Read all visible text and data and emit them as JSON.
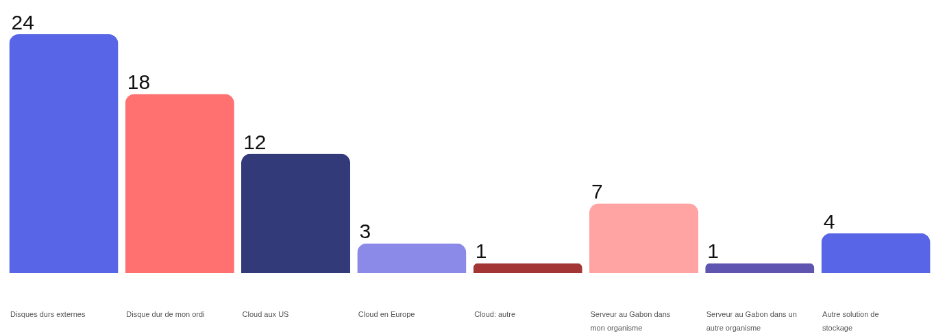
{
  "chart_data": {
    "type": "bar",
    "categories": [
      "Disques durs externes",
      "Disque dur de mon ordi",
      "Cloud aux US",
      "Cloud en Europe",
      "Cloud: autre",
      "Serveur au Gabon dans mon organisme",
      "Serveur au Gabon dans un autre organisme",
      "Autre solution de stockage"
    ],
    "values": [
      24,
      18,
      12,
      3,
      1,
      7,
      1,
      4
    ],
    "colors": [
      "#5865e6",
      "#ff7070",
      "#333a7a",
      "#8c8ae8",
      "#a33535",
      "#ffa3a3",
      "#5f55b0",
      "#5865e6"
    ],
    "data_labels": true
  }
}
